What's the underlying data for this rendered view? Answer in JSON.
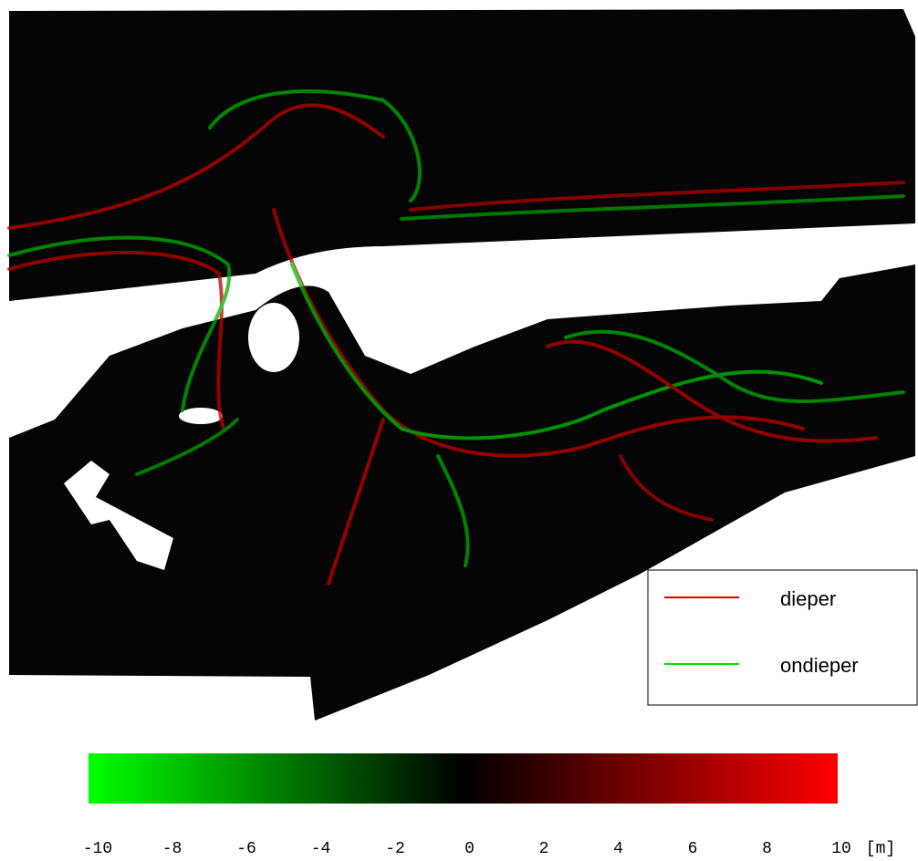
{
  "legend": {
    "items": [
      {
        "label": "dieper",
        "color": "#e00000"
      },
      {
        "label": "ondieper",
        "color": "#00e000"
      }
    ]
  },
  "colorbar": {
    "limits": [
      -10,
      10
    ],
    "ticks": [
      -10,
      -8,
      -6,
      -4,
      -2,
      0,
      2,
      4,
      6,
      8,
      10
    ],
    "unit": "[m]",
    "colors": [
      "#00ff00",
      "#000000",
      "#ff0000"
    ]
  }
}
